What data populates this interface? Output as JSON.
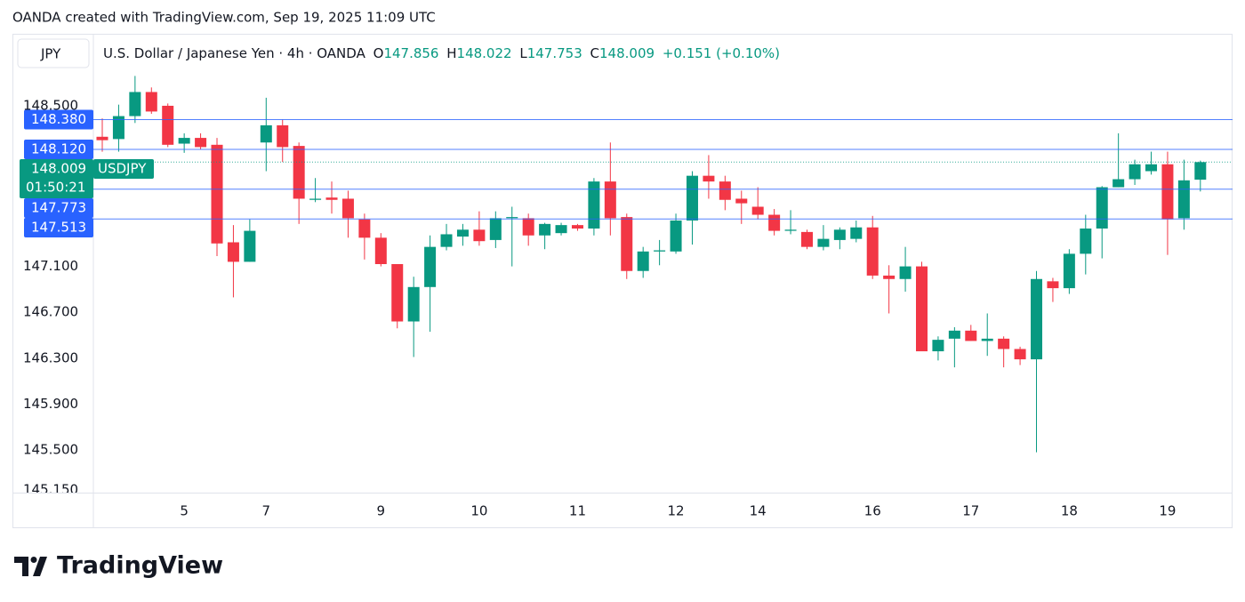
{
  "chart_data": {
    "type": "candlestick",
    "attribution": "OANDA created with TradingView.com, Sep 19, 2025 11:09 UTC",
    "currency": "JPY",
    "title": "U.S. Dollar / Japanese Yen · 4h · OANDA",
    "ohlc_labels": [
      "O",
      "H",
      "L",
      "C"
    ],
    "change": "+0.151 (+0.10%)",
    "brand": "TradingView",
    "up_color": "#089981",
    "down_color": "#f23645",
    "grid": false,
    "ylim": [
      145.128,
      149.112
    ],
    "yticks": [
      {
        "value": 148.5,
        "label": "148.500"
      },
      {
        "value": 147.1,
        "label": "147.100"
      },
      {
        "value": 146.7,
        "label": "146.700"
      },
      {
        "value": 146.3,
        "label": "146.300"
      },
      {
        "value": 145.9,
        "label": "145.900"
      },
      {
        "value": 145.5,
        "label": "145.500"
      },
      {
        "value": 145.15,
        "label": "145.150"
      }
    ],
    "price_lines": [
      {
        "value": 148.38,
        "label": "148.380",
        "color": "#2962ff",
        "line_style": "solid"
      },
      {
        "value": 148.12,
        "label": "148.120",
        "color": "#2962ff",
        "line_style": "solid"
      },
      {
        "value": 148.009,
        "label": "148.009",
        "color": "#089981",
        "line_style": "dotted",
        "symbol": "USDJPY",
        "countdown": "01:50:21"
      },
      {
        "value": 147.773,
        "label": "147.773",
        "color": "#2962ff",
        "line_style": "solid"
      },
      {
        "value": 147.513,
        "label": "147.513",
        "color": "#2962ff",
        "line_style": "solid"
      }
    ],
    "categories": [
      null,
      null,
      null,
      null,
      null,
      "5",
      null,
      null,
      null,
      null,
      "7",
      null,
      null,
      null,
      null,
      null,
      null,
      "9",
      null,
      null,
      null,
      null,
      null,
      "10",
      null,
      null,
      null,
      null,
      null,
      "11",
      null,
      null,
      null,
      null,
      null,
      "12",
      null,
      null,
      null,
      null,
      "14",
      null,
      null,
      null,
      null,
      null,
      null,
      "16",
      null,
      null,
      null,
      null,
      null,
      "17",
      null,
      null,
      null,
      null,
      null,
      "18",
      null,
      null,
      null,
      null,
      null,
      "19",
      null,
      null
    ],
    "open": [
      148.23,
      148.21,
      148.41,
      148.62,
      148.5,
      148.17,
      148.22,
      148.16,
      147.31,
      147.14,
      148.18,
      148.33,
      148.15,
      147.68,
      147.7,
      147.69,
      147.51,
      147.35,
      147.12,
      146.62,
      146.92,
      147.27,
      147.36,
      147.42,
      147.33,
      147.52,
      147.52,
      147.37,
      147.39,
      147.46,
      147.43,
      147.84,
      147.53,
      147.06,
      147.23,
      147.23,
      147.5,
      147.89,
      147.84,
      147.69,
      147.62,
      147.55,
      147.41,
      147.4,
      147.27,
      147.33,
      147.34,
      147.44,
      147.02,
      146.99,
      147.1,
      146.36,
      146.47,
      146.54,
      146.45,
      146.47,
      146.38,
      146.29,
      146.97,
      146.91,
      147.21,
      147.43,
      147.79,
      147.86,
      147.93,
      147.99,
      147.52,
      147.856
    ],
    "high": [
      148.39,
      148.51,
      148.76,
      148.66,
      148.52,
      148.26,
      148.26,
      148.22,
      147.46,
      147.51,
      148.57,
      148.38,
      148.18,
      147.87,
      147.84,
      147.76,
      147.56,
      147.39,
      147.12,
      147.01,
      147.37,
      147.47,
      147.47,
      147.58,
      147.58,
      147.62,
      147.56,
      147.48,
      147.48,
      147.47,
      147.87,
      148.18,
      147.56,
      147.27,
      147.33,
      147.56,
      147.93,
      148.07,
      147.89,
      147.76,
      147.79,
      147.6,
      147.59,
      147.42,
      147.46,
      147.44,
      147.5,
      147.54,
      147.11,
      147.27,
      147.14,
      146.49,
      146.57,
      146.59,
      146.69,
      146.49,
      146.4,
      147.06,
      147.0,
      147.25,
      147.55,
      147.8,
      148.26,
      148.03,
      148.1,
      148.1,
      148.03,
      148.022
    ],
    "low": [
      148.1,
      148.1,
      148.35,
      148.43,
      148.14,
      148.09,
      148.12,
      147.19,
      146.83,
      147.14,
      147.93,
      148.01,
      147.47,
      147.66,
      147.56,
      147.35,
      147.16,
      147.1,
      146.56,
      146.31,
      146.53,
      147.24,
      147.28,
      147.28,
      147.26,
      147.1,
      147.28,
      147.25,
      147.37,
      147.41,
      147.37,
      147.37,
      146.99,
      147.0,
      147.11,
      147.21,
      147.29,
      147.69,
      147.59,
      147.47,
      147.51,
      147.37,
      147.38,
      147.25,
      147.24,
      147.25,
      147.31,
      146.99,
      146.69,
      146.88,
      146.36,
      146.28,
      146.22,
      146.45,
      146.32,
      146.22,
      146.24,
      145.48,
      146.79,
      146.86,
      147.03,
      147.17,
      147.79,
      147.81,
      147.9,
      147.2,
      147.42,
      147.753
    ],
    "close": [
      148.2,
      148.41,
      148.62,
      148.45,
      148.16,
      148.22,
      148.14,
      147.3,
      147.14,
      147.41,
      148.33,
      148.14,
      147.69,
      147.69,
      147.68,
      147.52,
      147.35,
      147.12,
      146.62,
      146.92,
      147.27,
      147.38,
      147.42,
      147.32,
      147.52,
      147.53,
      147.37,
      147.47,
      147.46,
      147.43,
      147.84,
      147.52,
      147.06,
      147.23,
      147.24,
      147.5,
      147.89,
      147.84,
      147.68,
      147.65,
      147.55,
      147.41,
      147.42,
      147.27,
      147.34,
      147.42,
      147.44,
      147.02,
      146.99,
      147.1,
      146.36,
      146.46,
      146.54,
      146.45,
      146.47,
      146.38,
      146.29,
      146.99,
      146.91,
      147.21,
      147.43,
      147.79,
      147.86,
      147.99,
      147.99,
      147.51,
      147.85,
      148.009
    ]
  }
}
